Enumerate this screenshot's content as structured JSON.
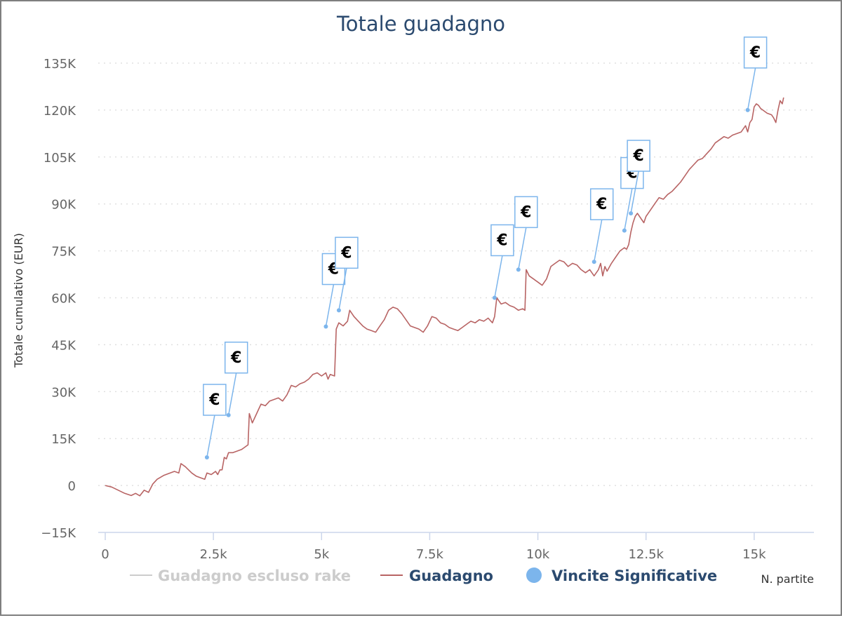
{
  "chart_data": {
    "type": "line",
    "title": "Totale guadagno",
    "xlabel": "N. partite",
    "ylabel": "Totale cumulativo (EUR)",
    "xlim": [
      0,
      15700
    ],
    "ylim": [
      -15000,
      135000
    ],
    "x_ticks": [
      {
        "value": 0,
        "label": "0"
      },
      {
        "value": 2500,
        "label": "2.5k"
      },
      {
        "value": 5000,
        "label": "5k"
      },
      {
        "value": 7500,
        "label": "7.5k"
      },
      {
        "value": 10000,
        "label": "10k"
      },
      {
        "value": 12500,
        "label": "12.5k"
      },
      {
        "value": 15000,
        "label": "15k"
      }
    ],
    "y_ticks": [
      {
        "value": -15000,
        "label": "−15K"
      },
      {
        "value": 0,
        "label": "0"
      },
      {
        "value": 15000,
        "label": "15K"
      },
      {
        "value": 30000,
        "label": "30K"
      },
      {
        "value": 45000,
        "label": "45K"
      },
      {
        "value": 60000,
        "label": "60K"
      },
      {
        "value": 75000,
        "label": "75K"
      },
      {
        "value": 90000,
        "label": "90K"
      },
      {
        "value": 105000,
        "label": "105K"
      },
      {
        "value": 120000,
        "label": "120K"
      },
      {
        "value": 135000,
        "label": "135K"
      }
    ],
    "grid": "horizontal-dotted",
    "legend_position": "bottom",
    "series": [
      {
        "name": "Guadagno escluso rake",
        "color": "#cccccc",
        "visible": false,
        "points": []
      },
      {
        "name": "Guadagno",
        "color": "#b86464",
        "visible": true,
        "points": [
          [
            0,
            0
          ],
          [
            150,
            -500
          ],
          [
            300,
            -1500
          ],
          [
            450,
            -2500
          ],
          [
            600,
            -3200
          ],
          [
            700,
            -2500
          ],
          [
            800,
            -3300
          ],
          [
            900,
            -1500
          ],
          [
            1000,
            -2200
          ],
          [
            1100,
            500
          ],
          [
            1200,
            2000
          ],
          [
            1350,
            3200
          ],
          [
            1500,
            4000
          ],
          [
            1600,
            4500
          ],
          [
            1700,
            4000
          ],
          [
            1750,
            7000
          ],
          [
            1850,
            6000
          ],
          [
            2000,
            4000
          ],
          [
            2100,
            3000
          ],
          [
            2200,
            2500
          ],
          [
            2300,
            2000
          ],
          [
            2350,
            4000
          ],
          [
            2450,
            3500
          ],
          [
            2500,
            4000
          ],
          [
            2550,
            4500
          ],
          [
            2600,
            3500
          ],
          [
            2650,
            5000
          ],
          [
            2700,
            5000
          ],
          [
            2750,
            9000
          ],
          [
            2800,
            8500
          ],
          [
            2850,
            10500
          ],
          [
            2950,
            10500
          ],
          [
            3050,
            11000
          ],
          [
            3150,
            11500
          ],
          [
            3200,
            12000
          ],
          [
            3300,
            13000
          ],
          [
            3330,
            23000
          ],
          [
            3400,
            20000
          ],
          [
            3500,
            23000
          ],
          [
            3600,
            26000
          ],
          [
            3700,
            25500
          ],
          [
            3800,
            27000
          ],
          [
            3900,
            27500
          ],
          [
            4000,
            28000
          ],
          [
            4100,
            27000
          ],
          [
            4200,
            29000
          ],
          [
            4300,
            32000
          ],
          [
            4400,
            31500
          ],
          [
            4500,
            32500
          ],
          [
            4600,
            33000
          ],
          [
            4700,
            34000
          ],
          [
            4800,
            35500
          ],
          [
            4900,
            36000
          ],
          [
            5000,
            35000
          ],
          [
            5100,
            36000
          ],
          [
            5150,
            34000
          ],
          [
            5200,
            35500
          ],
          [
            5300,
            35000
          ],
          [
            5340,
            50000
          ],
          [
            5400,
            52000
          ],
          [
            5500,
            51000
          ],
          [
            5600,
            52500
          ],
          [
            5650,
            56000
          ],
          [
            5750,
            54000
          ],
          [
            5850,
            52500
          ],
          [
            5950,
            51000
          ],
          [
            6050,
            50000
          ],
          [
            6150,
            49500
          ],
          [
            6250,
            49000
          ],
          [
            6350,
            51000
          ],
          [
            6450,
            53000
          ],
          [
            6550,
            56000
          ],
          [
            6650,
            57000
          ],
          [
            6750,
            56500
          ],
          [
            6850,
            55000
          ],
          [
            6950,
            53000
          ],
          [
            7050,
            51000
          ],
          [
            7150,
            50500
          ],
          [
            7250,
            50000
          ],
          [
            7350,
            49000
          ],
          [
            7450,
            51000
          ],
          [
            7550,
            54000
          ],
          [
            7650,
            53500
          ],
          [
            7750,
            52000
          ],
          [
            7850,
            51500
          ],
          [
            7950,
            50500
          ],
          [
            8050,
            50000
          ],
          [
            8150,
            49500
          ],
          [
            8250,
            50500
          ],
          [
            8350,
            51500
          ],
          [
            8450,
            52500
          ],
          [
            8550,
            52000
          ],
          [
            8650,
            53000
          ],
          [
            8750,
            52500
          ],
          [
            8850,
            53500
          ],
          [
            8950,
            52000
          ],
          [
            9000,
            54000
          ],
          [
            9050,
            60000
          ],
          [
            9150,
            58000
          ],
          [
            9250,
            58500
          ],
          [
            9350,
            57500
          ],
          [
            9450,
            57000
          ],
          [
            9550,
            56000
          ],
          [
            9650,
            56500
          ],
          [
            9700,
            56000
          ],
          [
            9730,
            69000
          ],
          [
            9800,
            67000
          ],
          [
            9900,
            66000
          ],
          [
            10000,
            65000
          ],
          [
            10100,
            64000
          ],
          [
            10200,
            66000
          ],
          [
            10300,
            70000
          ],
          [
            10400,
            71000
          ],
          [
            10500,
            72000
          ],
          [
            10600,
            71500
          ],
          [
            10700,
            70000
          ],
          [
            10800,
            71000
          ],
          [
            10900,
            70500
          ],
          [
            11000,
            69000
          ],
          [
            11100,
            68000
          ],
          [
            11200,
            69000
          ],
          [
            11300,
            67000
          ],
          [
            11400,
            69000
          ],
          [
            11450,
            71000
          ],
          [
            11500,
            67000
          ],
          [
            11550,
            70000
          ],
          [
            11600,
            68500
          ],
          [
            11700,
            71000
          ],
          [
            11800,
            73000
          ],
          [
            11900,
            75000
          ],
          [
            12000,
            76000
          ],
          [
            12050,
            75500
          ],
          [
            12100,
            77000
          ],
          [
            12150,
            81000
          ],
          [
            12200,
            84000
          ],
          [
            12250,
            86000
          ],
          [
            12300,
            87000
          ],
          [
            12400,
            85000
          ],
          [
            12450,
            84000
          ],
          [
            12500,
            86000
          ],
          [
            12550,
            87000
          ],
          [
            12600,
            88000
          ],
          [
            12700,
            90000
          ],
          [
            12800,
            92000
          ],
          [
            12900,
            91500
          ],
          [
            13000,
            93000
          ],
          [
            13100,
            94000
          ],
          [
            13200,
            95500
          ],
          [
            13300,
            97000
          ],
          [
            13400,
            99000
          ],
          [
            13500,
            101000
          ],
          [
            13600,
            102500
          ],
          [
            13700,
            104000
          ],
          [
            13800,
            104500
          ],
          [
            13900,
            106000
          ],
          [
            14000,
            107500
          ],
          [
            14100,
            109500
          ],
          [
            14200,
            110500
          ],
          [
            14300,
            111500
          ],
          [
            14400,
            111000
          ],
          [
            14500,
            112000
          ],
          [
            14600,
            112500
          ],
          [
            14700,
            113000
          ],
          [
            14800,
            115000
          ],
          [
            14850,
            113000
          ],
          [
            14900,
            116000
          ],
          [
            14950,
            117000
          ],
          [
            15000,
            121000
          ],
          [
            15050,
            122000
          ],
          [
            15100,
            121500
          ],
          [
            15150,
            120500
          ],
          [
            15200,
            120000
          ],
          [
            15300,
            119000
          ],
          [
            15400,
            118500
          ],
          [
            15450,
            117500
          ],
          [
            15500,
            116000
          ],
          [
            15550,
            120000
          ],
          [
            15600,
            123000
          ],
          [
            15650,
            122000
          ],
          [
            15680,
            124000
          ]
        ]
      },
      {
        "name": "Vincite Significative",
        "color": "#7cb5ec",
        "visible": true,
        "points": [
          {
            "x": 2350,
            "y": 9000,
            "label": "€"
          },
          {
            "x": 2850,
            "y": 22500,
            "label": "€"
          },
          {
            "x": 5100,
            "y": 50800,
            "label": "€"
          },
          {
            "x": 5400,
            "y": 56000,
            "label": "€"
          },
          {
            "x": 9000,
            "y": 60000,
            "label": "€"
          },
          {
            "x": 9550,
            "y": 69000,
            "label": "€"
          },
          {
            "x": 11300,
            "y": 71500,
            "label": "€"
          },
          {
            "x": 12000,
            "y": 81500,
            "label": "€"
          },
          {
            "x": 12150,
            "y": 87000,
            "label": "€"
          },
          {
            "x": 14850,
            "y": 120000,
            "label": "€"
          }
        ]
      }
    ]
  }
}
